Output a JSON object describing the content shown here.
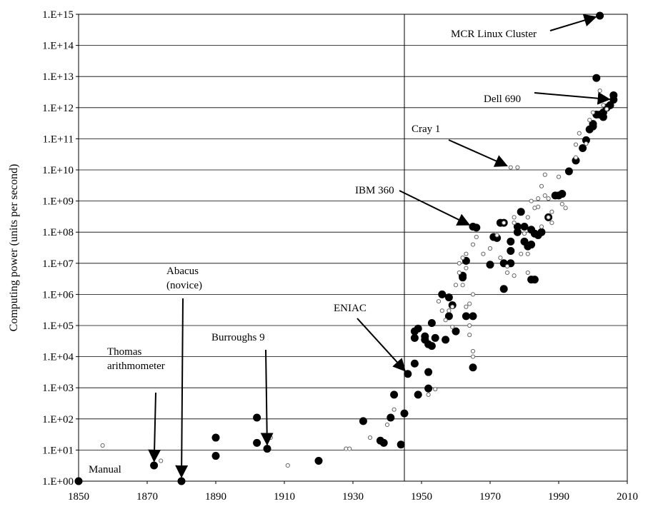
{
  "chart_data": {
    "type": "scatter",
    "title": "",
    "xlabel": "",
    "ylabel": "Computing power (units per second)",
    "xlim": [
      1850,
      2010
    ],
    "ylim_log10": [
      0,
      15
    ],
    "log_y": true,
    "grid": "horizontal",
    "reference_line_x": 1945,
    "x_ticks": [
      "1850",
      "1870",
      "1890",
      "1910",
      "1930",
      "1950",
      "1970",
      "1990",
      "2010"
    ],
    "y_ticks": [
      "1.E+00",
      "1.E+01",
      "1.E+02",
      "1.E+03",
      "1.E+04",
      "1.E+05",
      "1.E+06",
      "1.E+07",
      "1.E+08",
      "1.E+09",
      "1.E+10",
      "1.E+11",
      "1.E+12",
      "1.E+13",
      "1.E+14",
      "1.E+15"
    ],
    "series": [
      {
        "marker": "large-filled",
        "points": [
          [
            1850,
            1.0
          ],
          [
            1872,
            3.2
          ],
          [
            1880,
            1.0
          ],
          [
            1890,
            25.0
          ],
          [
            1890,
            6.5
          ],
          [
            1902,
            110.0
          ],
          [
            1902,
            17.0
          ],
          [
            1905,
            11.0
          ],
          [
            1920,
            4.5
          ],
          [
            1933,
            85.0
          ],
          [
            1938,
            20.0
          ],
          [
            1939,
            17.0
          ],
          [
            1941,
            110.0
          ],
          [
            1942,
            600.0
          ],
          [
            1944,
            15.0
          ],
          [
            1945,
            150.0
          ],
          [
            1946,
            2800.0
          ],
          [
            1948,
            6000.0
          ],
          [
            1948,
            65000.0
          ],
          [
            1948,
            40000.0
          ],
          [
            1949,
            80000.0
          ],
          [
            1949,
            600.0
          ],
          [
            1951,
            45000.0
          ],
          [
            1951,
            35000.0
          ],
          [
            1952,
            25000.0
          ],
          [
            1952,
            3200.0
          ],
          [
            1952,
            950.0
          ],
          [
            1953,
            120000.0
          ],
          [
            1953,
            22000.0
          ],
          [
            1954,
            40000.0
          ],
          [
            1956,
            1000000.0
          ],
          [
            1957,
            35000.0
          ],
          [
            1958,
            800000.0
          ],
          [
            1958,
            200000.0
          ],
          [
            1959,
            450000.0
          ],
          [
            1960,
            65000.0
          ],
          [
            1962,
            3500000.0
          ],
          [
            1962,
            4000000.0
          ],
          [
            1963,
            12000000.0
          ],
          [
            1963,
            200000.0
          ],
          [
            1965,
            150000000.0
          ],
          [
            1965,
            200000.0
          ],
          [
            1965,
            4500.0
          ],
          [
            1966,
            140000000.0
          ],
          [
            1970,
            9000000.0
          ],
          [
            1971,
            70000000.0
          ],
          [
            1972,
            65000000.0
          ],
          [
            1973,
            200000000.0
          ],
          [
            1974,
            200000000.0
          ],
          [
            1974,
            10000000.0
          ],
          [
            1974,
            1500000.0
          ],
          [
            1976,
            50000000.0
          ],
          [
            1976,
            25000000.0
          ],
          [
            1976,
            10000000.0
          ],
          [
            1978,
            100000000.0
          ],
          [
            1978,
            150000000.0
          ],
          [
            1979,
            450000000.0
          ],
          [
            1980,
            150000000.0
          ],
          [
            1980,
            50000000.0
          ],
          [
            1981,
            35000000.0
          ],
          [
            1982,
            40000000.0
          ],
          [
            1982,
            120000000.0
          ],
          [
            1982,
            3000000.0
          ],
          [
            1983,
            3000000.0
          ],
          [
            1983,
            90000000.0
          ],
          [
            1984,
            80000000.0
          ],
          [
            1985,
            100000000.0
          ],
          [
            1987,
            300000000.0
          ],
          [
            1989,
            1500000000.0
          ],
          [
            1990,
            1500000000.0
          ],
          [
            1991,
            1700000000.0
          ],
          [
            1993,
            9000000000.0
          ],
          [
            1995,
            20000000000.0
          ],
          [
            1997,
            50000000000.0
          ],
          [
            1998,
            90000000000.0
          ],
          [
            1999,
            200000000000.0
          ],
          [
            2000,
            250000000000.0
          ],
          [
            2000,
            300000000000.0
          ],
          [
            2001,
            600000000000.0
          ],
          [
            2001,
            9000000000000.0
          ],
          [
            2002,
            600000000000.0
          ],
          [
            2003,
            500000000000.0
          ],
          [
            2003,
            700000000000.0
          ],
          [
            2004,
            1000000000000.0
          ],
          [
            2005,
            1200000000000.0
          ],
          [
            2006,
            1800000000000.0
          ],
          [
            2006,
            2500000000000.0
          ],
          [
            2002,
            900000000000000.0
          ]
        ]
      },
      {
        "marker": "small-open",
        "points": [
          [
            1857,
            14.0
          ],
          [
            1874,
            4.5
          ],
          [
            1906,
            25.0
          ],
          [
            1911,
            3.2
          ],
          [
            1928,
            11.0
          ],
          [
            1929,
            11.0
          ],
          [
            1935,
            25.0
          ],
          [
            1940,
            65.0
          ],
          [
            1942,
            200.0
          ],
          [
            1952,
            600.0
          ],
          [
            1954,
            900.0
          ],
          [
            1955,
            600000.0
          ],
          [
            1956,
            300000.0
          ],
          [
            1957,
            150000.0
          ],
          [
            1958,
            300000.0
          ],
          [
            1959,
            400000.0
          ],
          [
            1959,
            90000.0
          ],
          [
            1960,
            2000000.0
          ],
          [
            1961,
            5000000.0
          ],
          [
            1961,
            10000000.0
          ],
          [
            1962,
            15000000.0
          ],
          [
            1962,
            2000000.0
          ],
          [
            1963,
            7000000.0
          ],
          [
            1963,
            20000000.0
          ],
          [
            1963,
            400000.0
          ],
          [
            1964,
            100000.0
          ],
          [
            1964,
            500000.0
          ],
          [
            1964,
            50000.0
          ],
          [
            1965,
            1000000.0
          ],
          [
            1965,
            40000000.0
          ],
          [
            1965,
            15000.0
          ],
          [
            1965,
            10000.0
          ],
          [
            1966,
            70000000.0
          ],
          [
            1968,
            20000000.0
          ],
          [
            1970,
            30000000.0
          ],
          [
            1972,
            80000000.0
          ],
          [
            1973,
            15000000.0
          ],
          [
            1974,
            200000000.0
          ],
          [
            1975,
            8000000.0
          ],
          [
            1975,
            5000000.0
          ],
          [
            1976,
            12000000000.0
          ],
          [
            1977,
            300000000.0
          ],
          [
            1977,
            4000000.0
          ],
          [
            1977,
            200000000.0
          ],
          [
            1978,
            12000000000.0
          ],
          [
            1979,
            20000000.0
          ],
          [
            1980,
            90000000.0
          ],
          [
            1981,
            20000000.0
          ],
          [
            1981,
            300000000.0
          ],
          [
            1981,
            5000000.0
          ],
          [
            1982,
            1000000000.0
          ],
          [
            1983,
            600000000.0
          ],
          [
            1984,
            1200000000.0
          ],
          [
            1984,
            650000000.0
          ],
          [
            1985,
            3000000000.0
          ],
          [
            1985,
            150000000.0
          ],
          [
            1986,
            1500000000.0
          ],
          [
            1986,
            7000000000.0
          ],
          [
            1987,
            1200000000.0
          ],
          [
            1987,
            300000000.0
          ],
          [
            1988,
            200000000.0
          ],
          [
            1988,
            450000000.0
          ],
          [
            1990,
            6000000000.0
          ],
          [
            1991,
            800000000.0
          ],
          [
            1992,
            600000000.0
          ],
          [
            1995,
            25000000000.0
          ],
          [
            1995,
            65000000000.0
          ],
          [
            1996,
            150000000000.0
          ],
          [
            1998,
            70000000000.0
          ],
          [
            1999,
            400000000000.0
          ],
          [
            2000,
            700000000000.0
          ],
          [
            2002,
            3500000000000.0
          ],
          [
            2003,
            1200000000000.0
          ],
          [
            2004,
            900000000000.0
          ]
        ]
      }
    ],
    "annotations": [
      {
        "key": "mcr",
        "lines": [
          "MCR Linux Cluster"
        ],
        "arrow_to": [
          2002,
          900000000000000.0
        ]
      },
      {
        "key": "dell",
        "lines": [
          "Dell 690"
        ],
        "arrow_to": [
          2006,
          1800000000000.0
        ]
      },
      {
        "key": "cray",
        "lines": [
          "Cray 1"
        ],
        "arrow_to": [
          1976,
          12000000000.0
        ]
      },
      {
        "key": "ibm",
        "lines": [
          "IBM 360"
        ],
        "arrow_to": [
          1965,
          150000000.0
        ]
      },
      {
        "key": "eniac",
        "lines": [
          "ENIAC"
        ],
        "arrow_to": [
          1946,
          2800.0
        ]
      },
      {
        "key": "burroughs",
        "lines": [
          "Burroughs 9"
        ],
        "arrow_to": [
          1905,
          11.0
        ]
      },
      {
        "key": "abacus",
        "lines": [
          "Abacus",
          "(novice)"
        ],
        "arrow_to": [
          1880,
          1.0
        ]
      },
      {
        "key": "thomas",
        "lines": [
          "Thomas",
          "arithmometer"
        ],
        "arrow_to": [
          1872,
          3.2
        ]
      },
      {
        "key": "manual",
        "lines": [
          "Manual"
        ],
        "arrow_to": null
      }
    ]
  }
}
